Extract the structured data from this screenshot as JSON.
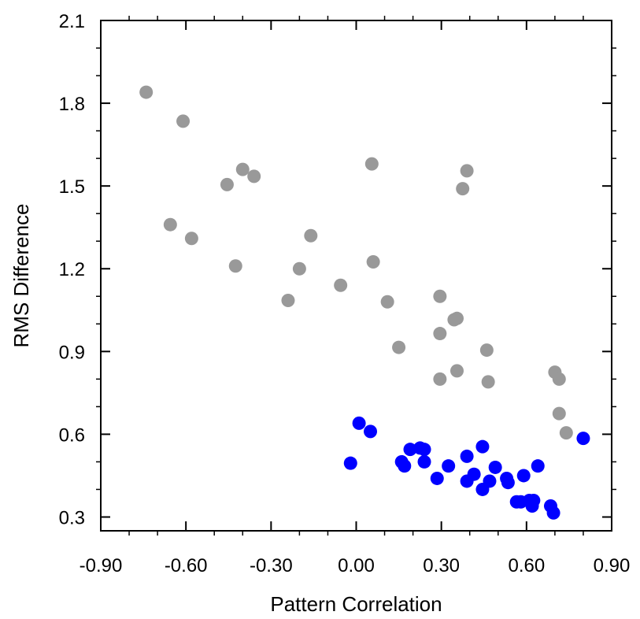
{
  "chart_data": {
    "type": "scatter",
    "title": "",
    "xlabel": "Pattern Correlation",
    "ylabel": "RMS Difference",
    "xlim": [
      -0.9,
      0.9
    ],
    "ylim": [
      0.25,
      2.1
    ],
    "grid": false,
    "x_ticks": [
      -0.9,
      -0.6,
      -0.3,
      0.0,
      0.3,
      0.6,
      0.9
    ],
    "x_tick_labels": [
      "-0.90",
      "-0.60",
      "-0.30",
      "0.00",
      "0.30",
      "0.60",
      "0.90"
    ],
    "y_ticks": [
      0.3,
      0.6,
      0.9,
      1.2,
      1.5,
      1.8,
      2.1
    ],
    "y_tick_labels": [
      "0.3",
      "0.6",
      "0.9",
      "1.2",
      "1.5",
      "1.8",
      "2.1"
    ],
    "series": [
      {
        "color": "#999999",
        "points": [
          [
            -0.74,
            1.84
          ],
          [
            -0.61,
            1.735
          ],
          [
            -0.4,
            1.56
          ],
          [
            -0.36,
            1.535
          ],
          [
            -0.455,
            1.505
          ],
          [
            -0.655,
            1.36
          ],
          [
            -0.58,
            1.31
          ],
          [
            -0.16,
            1.32
          ],
          [
            -0.425,
            1.21
          ],
          [
            -0.2,
            1.2
          ],
          [
            -0.24,
            1.085
          ],
          [
            -0.055,
            1.14
          ],
          [
            0.055,
            1.58
          ],
          [
            0.39,
            1.555
          ],
          [
            0.375,
            1.49
          ],
          [
            0.06,
            1.225
          ],
          [
            0.11,
            1.08
          ],
          [
            0.295,
            1.1
          ],
          [
            0.345,
            1.015
          ],
          [
            0.355,
            1.02
          ],
          [
            0.295,
            0.965
          ],
          [
            0.15,
            0.915
          ],
          [
            0.46,
            0.905
          ],
          [
            0.355,
            0.83
          ],
          [
            0.295,
            0.8
          ],
          [
            0.465,
            0.79
          ],
          [
            0.7,
            0.825
          ],
          [
            0.715,
            0.8
          ],
          [
            0.715,
            0.675
          ],
          [
            0.74,
            0.605
          ]
        ]
      },
      {
        "color": "#0000ff",
        "points": [
          [
            0.01,
            0.64
          ],
          [
            0.05,
            0.61
          ],
          [
            -0.02,
            0.495
          ],
          [
            0.19,
            0.545
          ],
          [
            0.225,
            0.55
          ],
          [
            0.24,
            0.545
          ],
          [
            0.445,
            0.555
          ],
          [
            0.8,
            0.585
          ],
          [
            0.16,
            0.5
          ],
          [
            0.17,
            0.485
          ],
          [
            0.24,
            0.5
          ],
          [
            0.325,
            0.485
          ],
          [
            0.39,
            0.52
          ],
          [
            0.49,
            0.48
          ],
          [
            0.64,
            0.485
          ],
          [
            0.285,
            0.44
          ],
          [
            0.39,
            0.43
          ],
          [
            0.415,
            0.455
          ],
          [
            0.47,
            0.43
          ],
          [
            0.53,
            0.44
          ],
          [
            0.535,
            0.425
          ],
          [
            0.59,
            0.45
          ],
          [
            0.445,
            0.4
          ],
          [
            0.565,
            0.355
          ],
          [
            0.58,
            0.355
          ],
          [
            0.61,
            0.36
          ],
          [
            0.625,
            0.36
          ],
          [
            0.62,
            0.34
          ],
          [
            0.685,
            0.34
          ],
          [
            0.695,
            0.315
          ]
        ]
      }
    ]
  }
}
